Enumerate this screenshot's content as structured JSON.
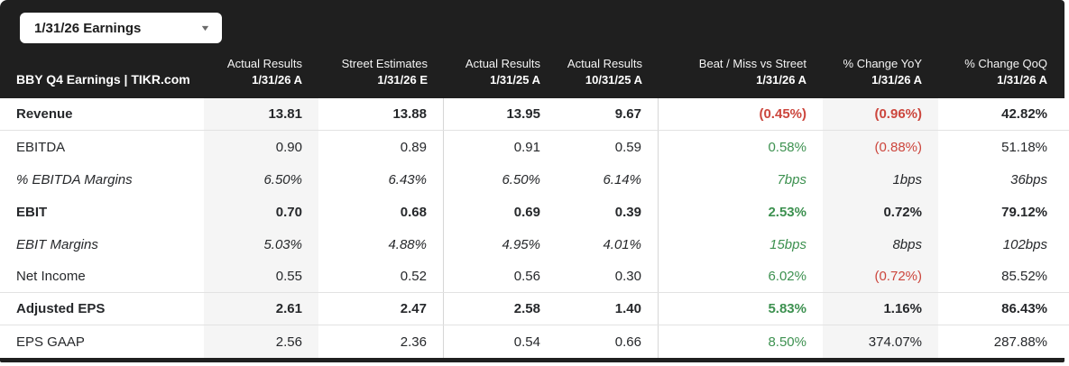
{
  "dropdown": {
    "label": "1/31/26 Earnings",
    "caret_icon": "chevron-down"
  },
  "table": {
    "title": "BBY Q4 Earnings | TIKR.com",
    "columns": [
      {
        "line1": "Actual Results",
        "line2": "1/31/26 A",
        "highlight": true,
        "divider_right": false
      },
      {
        "line1": "Street Estimates",
        "line2": "1/31/26 E",
        "highlight": false,
        "divider_right": true
      },
      {
        "line1": "Actual Results",
        "line2": "1/31/25 A",
        "highlight": false,
        "divider_right": false
      },
      {
        "line1": "Actual Results",
        "line2": "10/31/25 A",
        "highlight": false,
        "divider_right": true
      },
      {
        "line1": "Beat / Miss vs Street",
        "line2": "1/31/26 A",
        "highlight": false,
        "divider_right": false
      },
      {
        "line1": "% Change YoY",
        "line2": "1/31/26 A",
        "highlight": true,
        "divider_right": false
      },
      {
        "line1": "% Change QoQ",
        "line2": "1/31/26 A",
        "highlight": false,
        "divider_right": false
      }
    ],
    "rows": [
      {
        "label": "Revenue",
        "style": "bold",
        "separator_below": true,
        "cells": [
          {
            "text": "13.81"
          },
          {
            "text": "13.88"
          },
          {
            "text": "13.95"
          },
          {
            "text": "9.67"
          },
          {
            "text": "(0.45%)",
            "color": "negative"
          },
          {
            "text": "(0.96%)",
            "color": "negative"
          },
          {
            "text": "42.82%"
          }
        ]
      },
      {
        "label": "EBITDA",
        "style": "regular",
        "separator_below": false,
        "cells": [
          {
            "text": "0.90"
          },
          {
            "text": "0.89"
          },
          {
            "text": "0.91"
          },
          {
            "text": "0.59"
          },
          {
            "text": "0.58%",
            "color": "positive"
          },
          {
            "text": "(0.88%)",
            "color": "negative"
          },
          {
            "text": "51.18%"
          }
        ]
      },
      {
        "label": "% EBITDA Margins",
        "style": "italic",
        "separator_below": false,
        "cells": [
          {
            "text": "6.50%"
          },
          {
            "text": "6.43%"
          },
          {
            "text": "6.50%"
          },
          {
            "text": "6.14%"
          },
          {
            "text": "7bps",
            "color": "positive"
          },
          {
            "text": "1bps"
          },
          {
            "text": "36bps"
          }
        ]
      },
      {
        "label": "EBIT",
        "style": "bold",
        "separator_below": false,
        "cells": [
          {
            "text": "0.70"
          },
          {
            "text": "0.68"
          },
          {
            "text": "0.69"
          },
          {
            "text": "0.39"
          },
          {
            "text": "2.53%",
            "color": "positive"
          },
          {
            "text": "0.72%"
          },
          {
            "text": "79.12%"
          }
        ]
      },
      {
        "label": "EBIT Margins",
        "style": "italic",
        "separator_below": false,
        "cells": [
          {
            "text": "5.03%"
          },
          {
            "text": "4.88%"
          },
          {
            "text": "4.95%"
          },
          {
            "text": "4.01%"
          },
          {
            "text": "15bps",
            "color": "positive"
          },
          {
            "text": "8bps"
          },
          {
            "text": "102bps"
          }
        ]
      },
      {
        "label": "Net Income",
        "style": "regular",
        "separator_below": true,
        "cells": [
          {
            "text": "0.55"
          },
          {
            "text": "0.52"
          },
          {
            "text": "0.56"
          },
          {
            "text": "0.30"
          },
          {
            "text": "6.02%",
            "color": "positive"
          },
          {
            "text": "(0.72%)",
            "color": "negative"
          },
          {
            "text": "85.52%"
          }
        ]
      },
      {
        "label": "Adjusted EPS",
        "style": "bold",
        "separator_below": true,
        "cells": [
          {
            "text": "2.61"
          },
          {
            "text": "2.47"
          },
          {
            "text": "2.58"
          },
          {
            "text": "1.40"
          },
          {
            "text": "5.83%",
            "color": "positive"
          },
          {
            "text": "1.16%"
          },
          {
            "text": "86.43%"
          }
        ]
      },
      {
        "label": "EPS GAAP",
        "style": "regular",
        "separator_below": false,
        "cells": [
          {
            "text": "2.56"
          },
          {
            "text": "2.36"
          },
          {
            "text": "0.54"
          },
          {
            "text": "0.66"
          },
          {
            "text": "8.50%",
            "color": "positive"
          },
          {
            "text": "374.07%"
          },
          {
            "text": "287.88%"
          }
        ]
      }
    ]
  },
  "colors": {
    "header_bg": "#1f1f1f",
    "highlight_bg": "#f5f5f5",
    "positive": "#3d9150",
    "negative": "#cc463d"
  }
}
